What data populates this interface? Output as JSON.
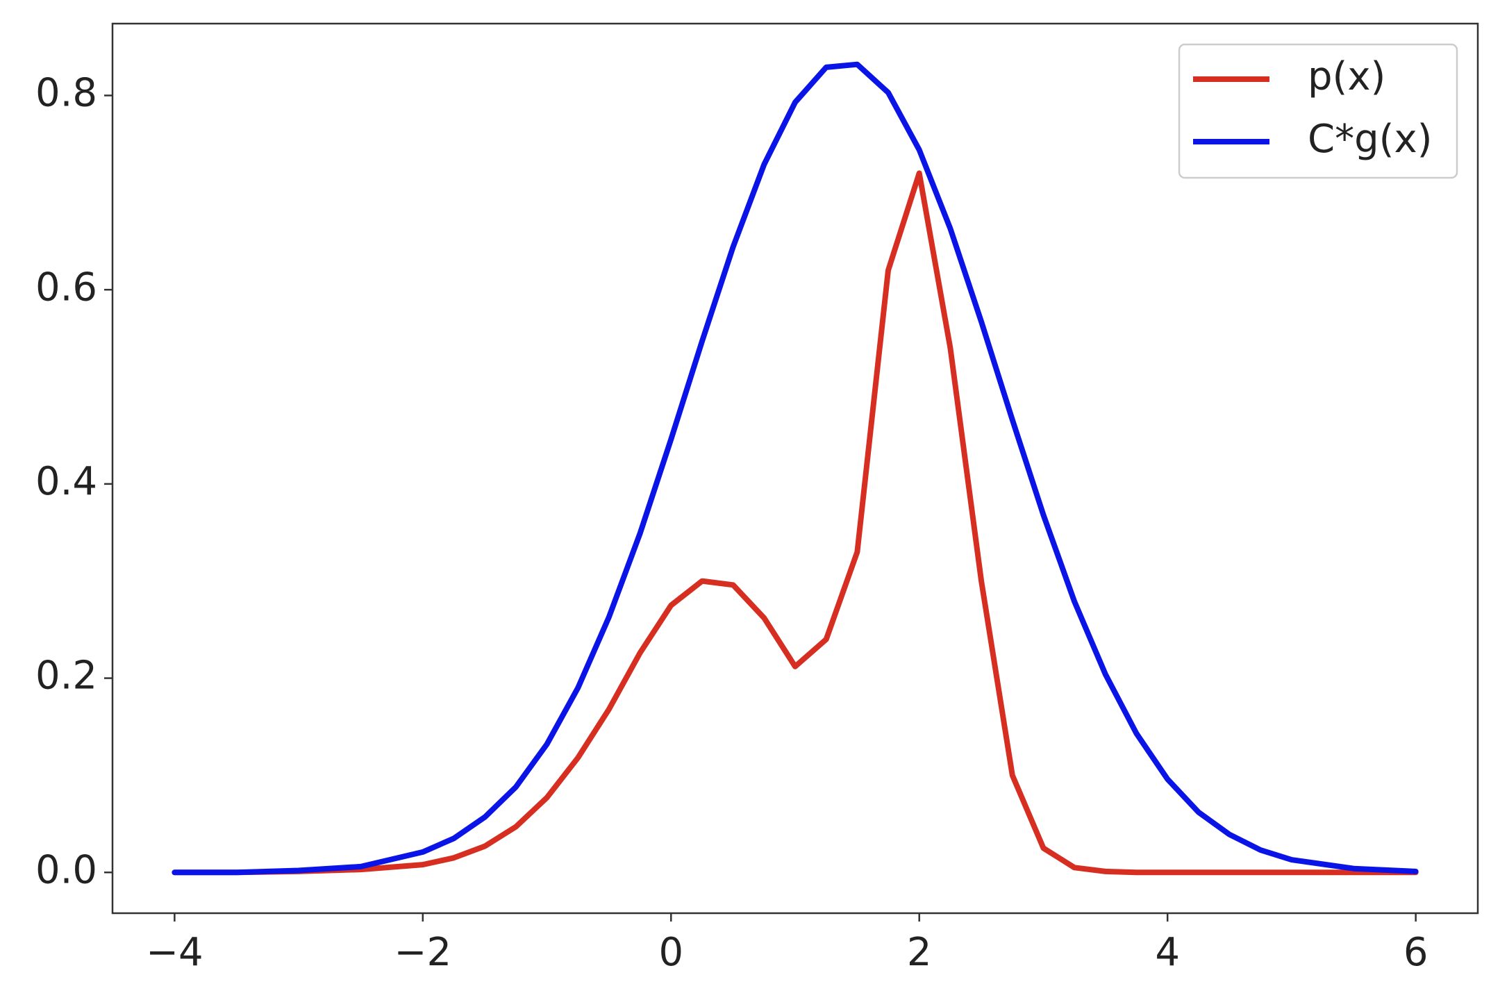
{
  "chart_data": {
    "type": "line",
    "x": [
      -4,
      -3.5,
      -3,
      -2.5,
      -2,
      -1.75,
      -1.5,
      -1.25,
      -1,
      -0.75,
      -0.5,
      -0.25,
      0,
      0.25,
      0.5,
      0.75,
      1,
      1.25,
      1.5,
      1.75,
      2,
      2.25,
      2.5,
      2.75,
      3,
      3.25,
      3.5,
      3.75,
      4,
      4.25,
      4.5,
      4.75,
      5,
      5.5,
      6
    ],
    "series": [
      {
        "name": "p(x)",
        "color": "#d62f22",
        "values": [
          0,
          0,
          0.001,
          0.003,
          0.008,
          0.015,
          0.027,
          0.047,
          0.077,
          0.118,
          0.168,
          0.226,
          0.275,
          0.3,
          0.296,
          0.262,
          0.212,
          0.24,
          0.33,
          0.62,
          0.72,
          0.54,
          0.3,
          0.1,
          0.025,
          0.005,
          0.001,
          0,
          0,
          0,
          0,
          0,
          0,
          0,
          0
        ]
      },
      {
        "name": "C*g(x)",
        "color": "#0a14e6",
        "values": [
          0,
          0,
          0.002,
          0.006,
          0.021,
          0.035,
          0.057,
          0.088,
          0.132,
          0.19,
          0.263,
          0.349,
          0.446,
          0.547,
          0.644,
          0.729,
          0.793,
          0.829,
          0.832,
          0.803,
          0.744,
          0.663,
          0.567,
          0.466,
          0.368,
          0.279,
          0.204,
          0.143,
          0.096,
          0.062,
          0.039,
          0.023,
          0.013,
          0.004,
          0.001
        ]
      }
    ],
    "xlim": [
      -4.5,
      6.5
    ],
    "ylim": [
      -0.042,
      0.874
    ],
    "xticks": [
      {
        "value": -4,
        "label": "−4"
      },
      {
        "value": -2,
        "label": "−2"
      },
      0,
      2,
      4,
      6
    ],
    "yticks": [
      {
        "value": 0,
        "label": "0.0"
      },
      0.2,
      0.4,
      0.6,
      0.8
    ],
    "grid": false,
    "legend": "upper right"
  }
}
